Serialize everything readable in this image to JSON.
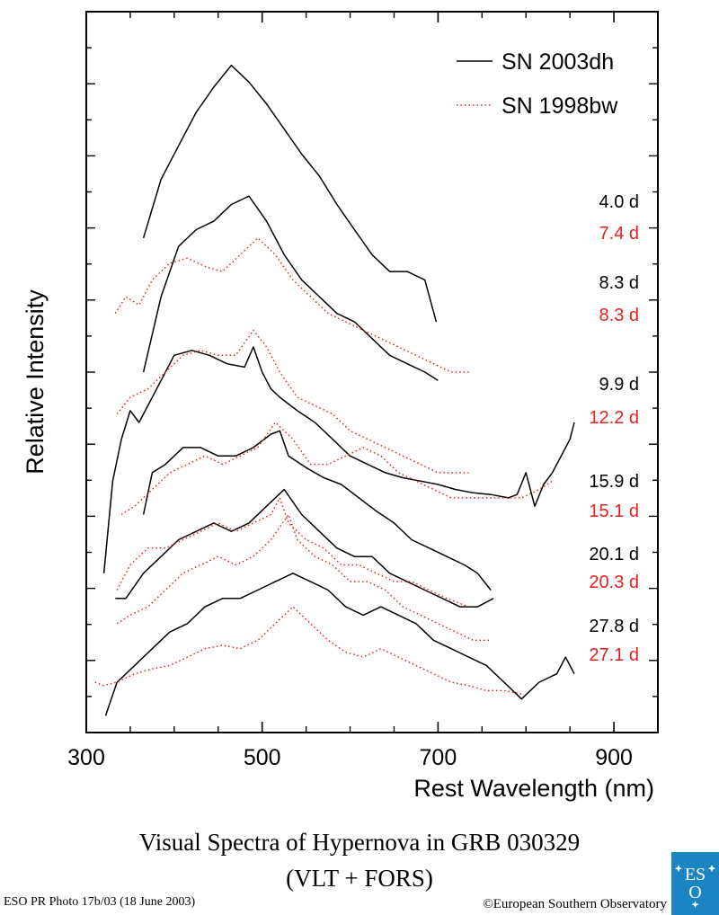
{
  "chart_data": {
    "type": "line",
    "title": "Visual Spectra of Hypernova in GRB 030329",
    "subtitle": "(VLT + FORS)",
    "xlabel": "Rest Wavelength (nm)",
    "ylabel": "Relative Intensity",
    "xlim": [
      300,
      950
    ],
    "x_ticks": [
      "300",
      "500",
      "700",
      "900"
    ],
    "x_tick_values": [
      300,
      500,
      700,
      900
    ],
    "grid": false,
    "legend_position": "top-right",
    "series_colors": {
      "SN 2003dh": "#000000",
      "SN 1998bw": "#e8201e"
    },
    "series": [
      {
        "name": "SN 2003dh",
        "style": "solid",
        "spectra": [
          {
            "epoch": "4.0 d",
            "x": [
              365,
              385,
              405,
              425,
              445,
              465,
              485,
              505,
              525,
              545,
              565,
              585,
              605,
              625,
              645,
              665,
              685,
              698
            ],
            "y": [
              33.5,
              37.0,
              39.0,
              41.0,
              42.5,
              43.8,
              42.8,
              41.5,
              40.0,
              38.5,
              37.2,
              35.5,
              34.0,
              32.5,
              31.5,
              31.5,
              31.0,
              28.5
            ]
          },
          {
            "epoch": "8.3 d",
            "x": [
              365,
              385,
              405,
              425,
              445,
              465,
              485,
              505,
              525,
              545,
              565,
              585,
              605,
              625,
              645,
              665,
              685,
              700
            ],
            "y": [
              25.5,
              30.0,
              33.0,
              34.0,
              34.5,
              35.5,
              36.0,
              34.5,
              32.5,
              31.0,
              30.0,
              29.0,
              28.5,
              27.5,
              26.5,
              26.0,
              25.5,
              25.0
            ]
          },
          {
            "epoch": "9.9 d",
            "x": [
              320,
              330,
              340,
              350,
              360,
              380,
              400,
              420,
              440,
              460,
              480,
              490,
              500,
              510,
              520,
              540,
              560,
              580,
              600,
              620,
              640,
              660,
              680,
              700,
              720,
              740,
              760,
              780,
              790,
              800,
              810,
              820,
              830,
              840,
              850,
              855
            ],
            "y": [
              13.5,
              19.0,
              21.5,
              23.2,
              22.5,
              24.5,
              26.5,
              26.8,
              26.5,
              26.0,
              25.8,
              27.0,
              25.5,
              24.5,
              24.0,
              23.2,
              22.5,
              21.5,
              20.5,
              20.0,
              19.5,
              19.2,
              19.0,
              18.8,
              18.5,
              18.3,
              18.2,
              18.0,
              18.2,
              19.5,
              17.5,
              18.8,
              19.5,
              20.5,
              21.5,
              22.5
            ]
          },
          {
            "epoch": "15.9 d",
            "x": [
              365,
              375,
              390,
              410,
              430,
              450,
              470,
              490,
              510,
              520,
              530,
              550,
              570,
              590,
              610,
              630,
              650,
              670,
              690,
              710,
              730,
              745,
              760
            ],
            "y": [
              17.0,
              19.5,
              20.0,
              21.0,
              21.0,
              20.5,
              20.5,
              21.0,
              21.8,
              22.0,
              20.5,
              19.8,
              19.2,
              18.8,
              18.0,
              17.2,
              16.5,
              15.5,
              15.0,
              14.5,
              14.0,
              13.5,
              12.5
            ]
          },
          {
            "epoch": "20.1 d",
            "x": [
              333,
              345,
              365,
              385,
              405,
              425,
              445,
              465,
              485,
              505,
              525,
              545,
              565,
              585,
              605,
              625,
              645,
              665,
              685,
              705,
              725,
              745,
              763
            ],
            "y": [
              12.0,
              12.0,
              13.5,
              14.5,
              15.5,
              16.0,
              16.5,
              16.0,
              16.5,
              17.5,
              18.5,
              17.0,
              16.0,
              15.0,
              14.5,
              14.5,
              13.5,
              13.0,
              12.5,
              12.0,
              11.5,
              11.5,
              12.0
            ]
          },
          {
            "epoch": "27.8 d",
            "x": [
              322,
              335,
              355,
              375,
              395,
              415,
              435,
              455,
              475,
              495,
              515,
              535,
              555,
              575,
              595,
              615,
              635,
              655,
              675,
              695,
              715,
              735,
              755,
              775,
              795,
              815,
              835,
              845,
              855
            ],
            "y": [
              5.0,
              7.0,
              8.0,
              9.0,
              10.0,
              10.5,
              11.5,
              12.0,
              12.0,
              12.5,
              13.0,
              13.5,
              13.0,
              12.5,
              11.5,
              11.0,
              11.5,
              11.0,
              10.5,
              9.5,
              9.0,
              8.5,
              8.0,
              7.0,
              6.0,
              7.0,
              7.5,
              8.5,
              7.5
            ]
          }
        ]
      },
      {
        "name": "SN 1998bw",
        "style": "dotted",
        "spectra": [
          {
            "epoch": "7.4 d",
            "x": [
              333,
              345,
              360,
              375,
              395,
              415,
              435,
              455,
              475,
              495,
              515,
              535,
              555,
              575,
              595,
              615,
              635,
              655,
              675,
              695,
              715,
              735
            ],
            "y": [
              29.0,
              30.0,
              29.5,
              31.0,
              32.0,
              32.3,
              31.8,
              31.5,
              32.5,
              33.5,
              32.5,
              31.0,
              30.0,
              29.0,
              28.5,
              28.0,
              27.5,
              27.0,
              26.5,
              26.0,
              25.5,
              25.5
            ]
          },
          {
            "epoch": "8.3 d",
            "x": [
              335,
              350,
              370,
              390,
              410,
              430,
              450,
              470,
              490,
              505,
              520,
              540,
              560,
              580,
              600,
              620,
              640,
              660,
              680,
              700,
              720,
              735
            ],
            "y": [
              23.0,
              24.0,
              24.5,
              25.5,
              26.5,
              26.8,
              26.5,
              26.5,
              28.0,
              27.0,
              25.5,
              24.0,
              23.5,
              23.0,
              22.0,
              21.5,
              21.0,
              20.5,
              20.0,
              19.5,
              19.5,
              19.5
            ]
          },
          {
            "epoch": "12.2 d",
            "x": [
              340,
              355,
              375,
              395,
              415,
              435,
              455,
              475,
              495,
              515,
              535,
              555,
              575,
              595,
              615,
              635,
              655,
              675,
              695,
              715,
              735,
              755,
              775,
              795,
              815,
              830
            ],
            "y": [
              17.0,
              17.5,
              18.5,
              19.5,
              20.0,
              20.5,
              20.0,
              20.5,
              21.0,
              22.5,
              21.5,
              20.0,
              20.0,
              20.5,
              21.0,
              20.5,
              19.5,
              19.0,
              18.5,
              18.0,
              18.0,
              18.0,
              18.0,
              18.0,
              18.5,
              19.0
            ]
          },
          {
            "epoch": "15.1 d",
            "x": [
              335,
              350,
              370,
              390,
              410,
              430,
              450,
              470,
              490,
              510,
              520,
              530,
              550,
              570,
              590,
              610,
              630,
              650,
              670,
              690,
              710,
              735
            ],
            "y": [
              12.5,
              14.0,
              15.0,
              15.0,
              15.5,
              16.0,
              16.5,
              16.0,
              16.5,
              17.0,
              18.0,
              16.5,
              15.5,
              15.0,
              14.0,
              14.0,
              13.5,
              13.0,
              13.0,
              12.5,
              12.0,
              11.5
            ]
          },
          {
            "epoch": "20.3 d",
            "x": [
              335,
              350,
              370,
              390,
              410,
              430,
              450,
              470,
              490,
              510,
              530,
              540,
              560,
              580,
              600,
              620,
              640,
              660,
              680,
              700,
              720,
              740,
              760
            ],
            "y": [
              10.5,
              11.0,
              11.5,
              12.5,
              13.5,
              14.0,
              14.5,
              14.0,
              14.5,
              15.5,
              17.0,
              15.5,
              14.5,
              14.0,
              13.0,
              13.0,
              12.5,
              11.5,
              11.0,
              10.5,
              10.0,
              9.5,
              9.5
            ]
          },
          {
            "epoch": "27.1 d",
            "x": [
              310,
              320,
              335,
              355,
              375,
              395,
              415,
              435,
              455,
              475,
              495,
              515,
              535,
              555,
              575,
              595,
              615,
              635,
              655,
              675,
              695,
              715,
              735,
              755,
              775,
              795
            ],
            "y": [
              7.0,
              6.8,
              7.0,
              7.5,
              7.8,
              8.0,
              8.5,
              9.0,
              9.2,
              9.0,
              9.5,
              10.5,
              11.5,
              10.5,
              9.5,
              8.8,
              8.5,
              9.0,
              8.5,
              8.0,
              7.5,
              7.0,
              6.8,
              6.5,
              6.5,
              6.3
            ]
          }
        ]
      }
    ],
    "y_visual_range": [
      4,
      47
    ],
    "y_minor_ticks": 12
  },
  "caption": {
    "title": "Visual Spectra of Hypernova in GRB 030329",
    "subtitle": "(VLT + FORS)",
    "photo_credit": "ESO PR Photo 17b/03 (18 June 2003)",
    "copyright": "©European Southern Observatory"
  },
  "logo": {
    "text_es": "ES",
    "text_o": "O"
  }
}
